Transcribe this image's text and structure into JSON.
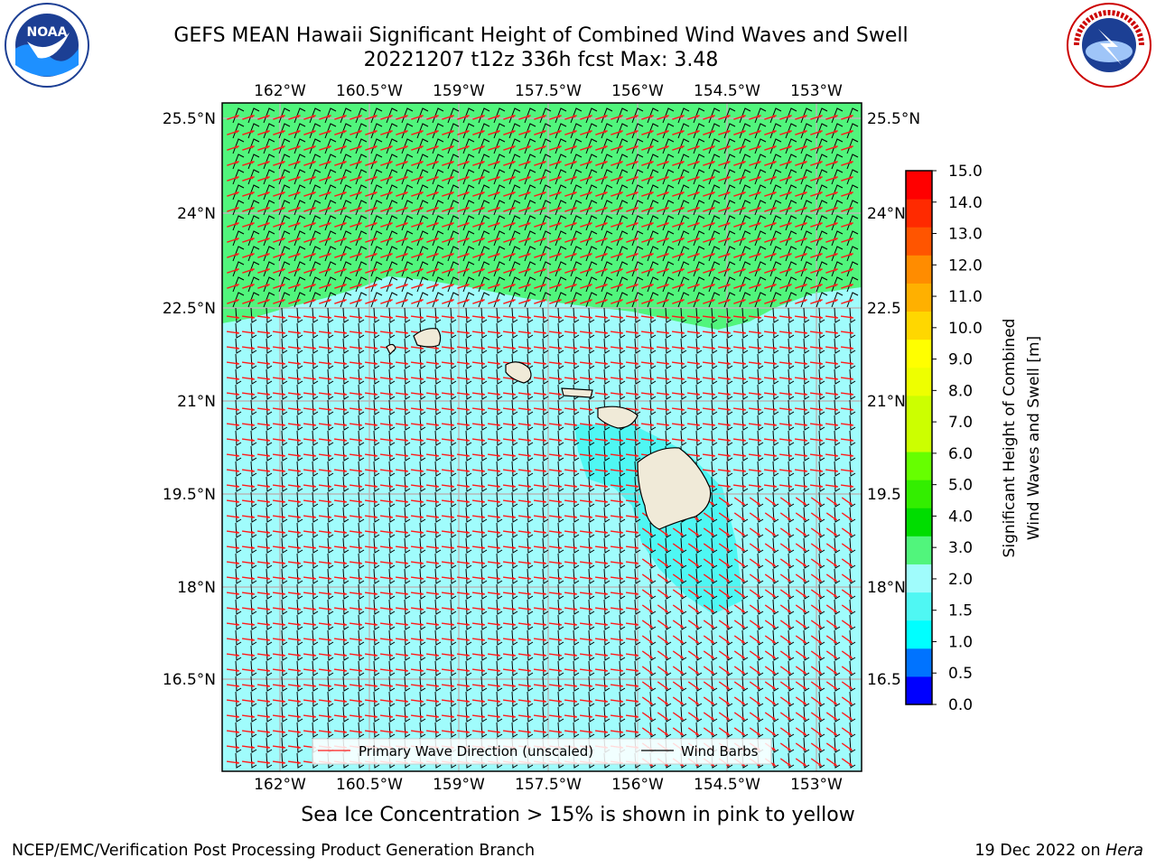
{
  "header": {
    "title_line1": "GEFS MEAN Hawaii Significant Height of Combined Wind Waves and Swell",
    "title_line2": "20221207 t12z 336h fcst   Max: 3.48"
  },
  "logos": {
    "left": {
      "icon": "noaa-logo",
      "text": "NOAA"
    },
    "right": {
      "icon": "nws-logo",
      "text": "NATIONAL WEATHER SERVICE"
    }
  },
  "map": {
    "lon_labels": [
      "162°W",
      "160.5°W",
      "159°W",
      "157.5°W",
      "156°W",
      "154.5°W",
      "153°W"
    ],
    "lat_labels": [
      "25.5°N",
      "24°N",
      "22.5°N",
      "21°N",
      "19.5°N",
      "18°N",
      "16.5°N"
    ],
    "lat_labels_right": [
      "25.5°N",
      "24°N",
      "22.5",
      "21°N",
      "19.5",
      "18°N",
      "16.5"
    ],
    "colors": {
      "ocean_low": "#a0fcfc",
      "ocean_mid": "#4ff7f3",
      "ocean_high": "#51f57c",
      "land": "#f0ead8",
      "arrow": "#ff1a1a",
      "barb": "#000000"
    }
  },
  "legend": {
    "primary_wave": "Primary Wave Direction (unscaled)",
    "wind_barbs": "Wind Barbs"
  },
  "colorbar": {
    "label_line1": "Significant Height of Combined",
    "label_line2": "Wind Waves and Swell [m]",
    "ticks": [
      "15.0",
      "14.0",
      "13.0",
      "12.0",
      "11.0",
      "10.0",
      "9.0",
      "8.0",
      "7.0",
      "6.0",
      "5.0",
      "4.0",
      "3.0",
      "2.0",
      "1.5",
      "1.0",
      "0.5",
      "0.0"
    ],
    "colors": [
      "#0000ff",
      "#0073ff",
      "#00ffff",
      "#4ff7f3",
      "#a0fcfc",
      "#51f57c",
      "#00dd00",
      "#33ee00",
      "#66ff00",
      "#ccff00",
      "#ccff00",
      "#eeff00",
      "#ffff00",
      "#ffd700",
      "#ffb000",
      "#ff8c00",
      "#ff5500",
      "#ff2a00",
      "#ff0000"
    ]
  },
  "notes": {
    "sea_ice": "Sea Ice Concentration > 15% is shown in pink to yellow",
    "footer_left": "NCEP/EMC/Verification Post Processing Product Generation Branch",
    "footer_right_prefix": "19 Dec 2022 on ",
    "footer_right_host": "Hera"
  }
}
